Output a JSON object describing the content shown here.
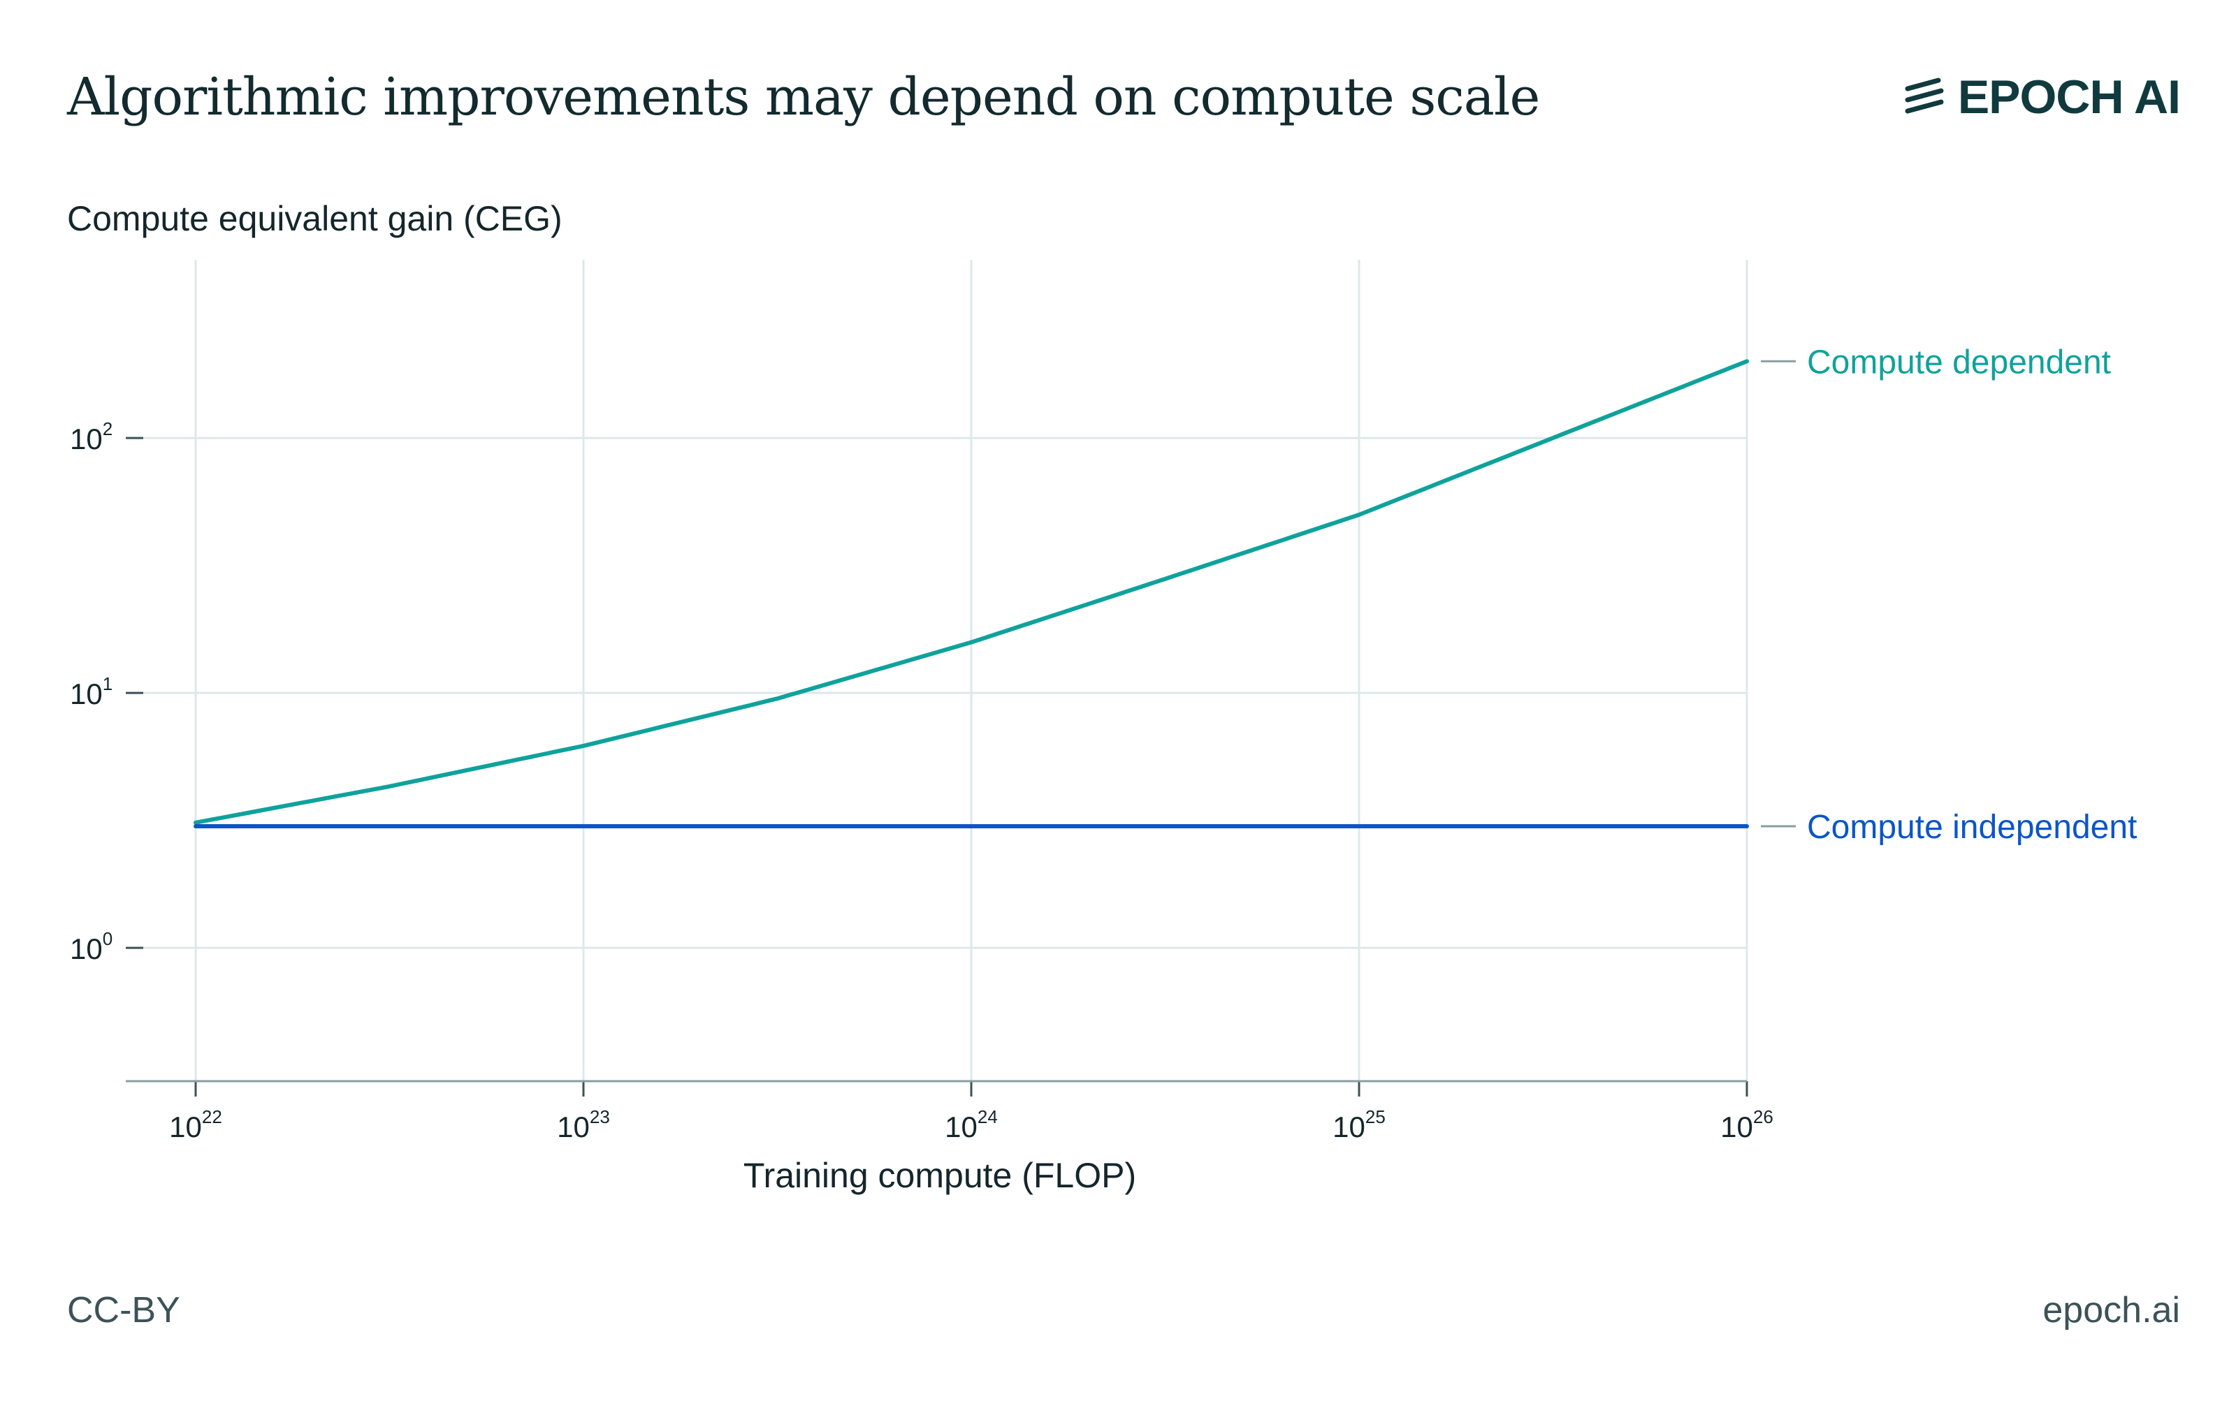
{
  "header": {
    "title": "Algorithmic improvements may depend on compute scale",
    "brand": "EPOCH AI",
    "brand_icon": "epoch-slash-mark-icon"
  },
  "footer": {
    "license": "CC-BY",
    "site": "epoch.ai"
  },
  "chart_data": {
    "type": "line",
    "title": "Algorithmic improvements may depend on compute scale",
    "xlabel": "Training compute (FLOP)",
    "ylabel": "Compute equivalent gain (CEG)",
    "xscale": "log",
    "yscale": "log",
    "xlim": [
      1e+22,
      1e+26
    ],
    "ylim": [
      0.3,
      500
    ],
    "x_ticks": [
      {
        "value": 1e+22,
        "base": "10",
        "exp": "22"
      },
      {
        "value": 1e+23,
        "base": "10",
        "exp": "23"
      },
      {
        "value": 1e+24,
        "base": "10",
        "exp": "24"
      },
      {
        "value": 1e+25,
        "base": "10",
        "exp": "25"
      },
      {
        "value": 1e+26,
        "base": "10",
        "exp": "26"
      }
    ],
    "y_ticks": [
      {
        "value": 1,
        "base": "10",
        "exp": "0"
      },
      {
        "value": 10,
        "base": "10",
        "exp": "1"
      },
      {
        "value": 100,
        "base": "10",
        "exp": "2"
      }
    ],
    "grid": true,
    "legend": "direct labels at right end of lines",
    "series": [
      {
        "name": "Compute dependent",
        "color": "#0fa29c",
        "x": [
          1e+22,
          3.16e+22,
          1e+23,
          3.16e+23,
          1e+24,
          3.16e+24,
          1e+25,
          3.16e+25,
          1e+26
        ],
        "y": [
          3.1,
          4.3,
          6.2,
          9.5,
          15.8,
          28,
          50,
          100,
          200
        ]
      },
      {
        "name": "Compute independent",
        "color": "#0b55c8",
        "x": [
          1e+22,
          1e+26
        ],
        "y": [
          3.0,
          3.0
        ]
      }
    ]
  }
}
